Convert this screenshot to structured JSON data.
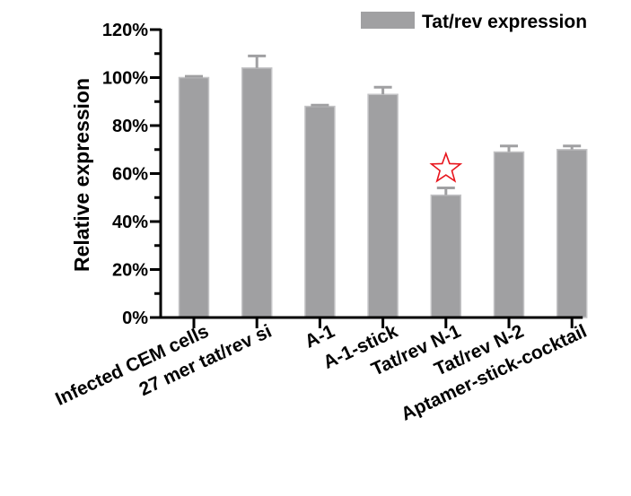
{
  "chart_data": {
    "type": "bar",
    "title": "",
    "xlabel": "",
    "ylabel": "Relative expression",
    "ylim": [
      0,
      120
    ],
    "y_ticks": [
      "0%",
      "20%",
      "40%",
      "60%",
      "80%",
      "100%",
      "120%"
    ],
    "y_tick_values": [
      0,
      20,
      40,
      60,
      80,
      100,
      120
    ],
    "categories": [
      "Infected CEM cells",
      "27 mer tat/rev si",
      "A-1",
      "A-1-stick",
      "Tat/rev N-1",
      "Tat/rev N-2",
      "Aptamer-stick-cocktail"
    ],
    "series": [
      {
        "name": "Tat/rev expression",
        "values": [
          100,
          104,
          88,
          93,
          51,
          69,
          70
        ],
        "error": [
          0.5,
          5,
          0.5,
          3,
          3,
          2.5,
          1.5
        ]
      }
    ],
    "legend_position": "top-right",
    "grid": false,
    "annotations": [
      {
        "type": "star-outline",
        "category": "Tat/rev N-1",
        "y": 65,
        "color": "#e8141c"
      }
    ],
    "colors": {
      "bar": "#a0a0a2",
      "axis": "#000000",
      "star": "#e8141c"
    }
  }
}
